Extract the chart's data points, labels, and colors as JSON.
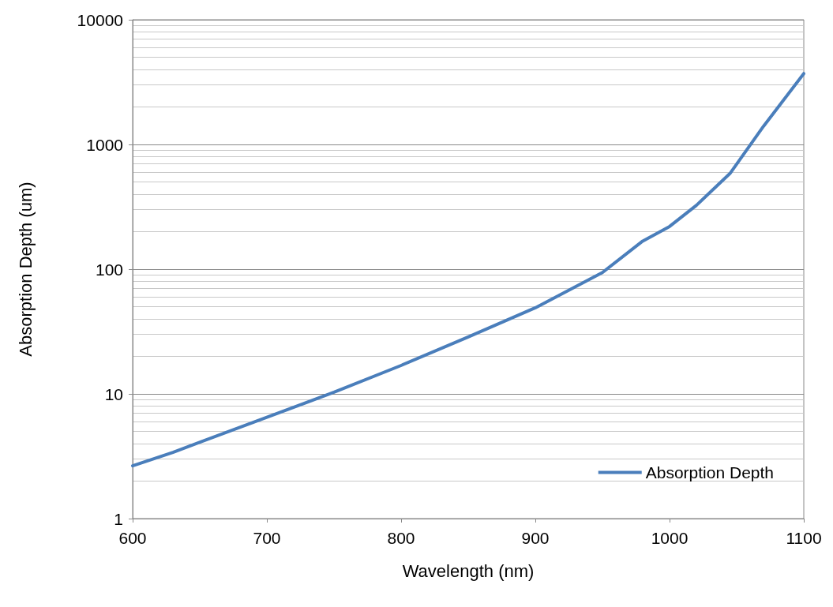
{
  "chart_data": {
    "type": "line",
    "xlabel": "Wavelength (nm)",
    "ylabel": "Absorption Depth (um)",
    "x": [
      600,
      630,
      700,
      750,
      800,
      850,
      900,
      950,
      980,
      1000,
      1020,
      1045,
      1070,
      1100
    ],
    "series": [
      {
        "name": "Absorption Depth",
        "color": "#4a7ebb",
        "values": [
          2.65,
          3.4,
          6.5,
          10.3,
          16.9,
          28.6,
          49,
          94,
          168,
          220,
          325,
          585,
          1400,
          3700
        ]
      }
    ],
    "xlim": [
      600,
      1100
    ],
    "xticks": [
      600,
      700,
      800,
      900,
      1000,
      1100
    ],
    "ylim": [
      1,
      10000
    ],
    "yticks": [
      1,
      10,
      100,
      1000,
      10000
    ],
    "log": "y",
    "grid": "y",
    "legend": "bottom right",
    "marker": "none",
    "line_style": "solid"
  }
}
